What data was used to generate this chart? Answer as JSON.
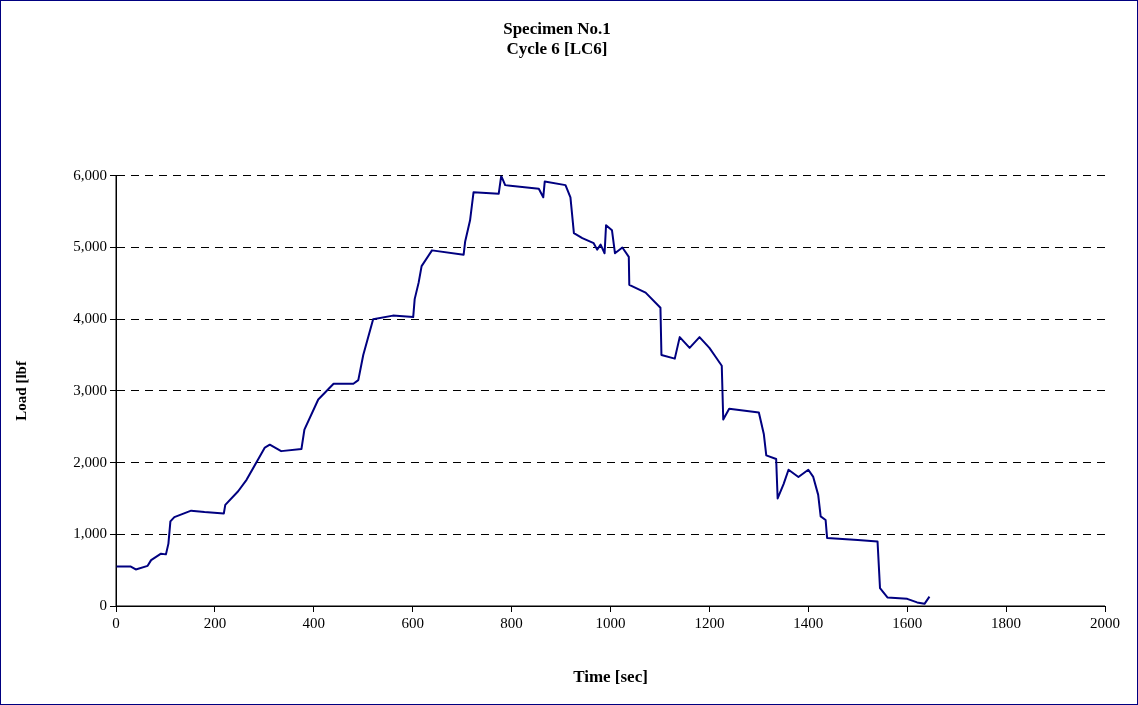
{
  "chart_data": {
    "type": "line",
    "title": "Specimen No.1",
    "subtitle": "Cycle 6 [LC6]",
    "xlabel": "Time [sec]",
    "ylabel": "Load [lbf",
    "grid": "y",
    "legend": false,
    "marker": "none",
    "line_style": "solid",
    "xlim": [
      0,
      2000
    ],
    "xticks": [
      0,
      200,
      400,
      600,
      800,
      1000,
      1200,
      1400,
      1600,
      1800,
      2000
    ],
    "ylim": [
      0,
      6000
    ],
    "yticks": [
      0,
      {
        "value": 1000,
        "label": "1,000"
      },
      {
        "value": 2000,
        "label": "2,000"
      },
      {
        "value": 3000,
        "label": "3,000"
      },
      {
        "value": 4000,
        "label": "4,000"
      },
      {
        "value": 5000,
        "label": "5,000"
      },
      {
        "value": 6000,
        "label": "6,000"
      }
    ],
    "series": [
      {
        "color": "#000080",
        "x": [
          0,
          30,
          40,
          64,
          71,
          91,
          101,
          106,
          110,
          118,
          152,
          179,
          218,
          221,
          247,
          264,
          287,
          301,
          311,
          334,
          375,
          381,
          409,
          440,
          480,
          490,
          500,
          520,
          560,
          601,
          604,
          612,
          618,
          639,
          703,
          706,
          716,
          723,
          774,
          779,
          787,
          855,
          864,
          867,
          909,
          919,
          926,
          943,
          966,
          973,
          980,
          988,
          991,
          1003,
          1009,
          1024,
          1037,
          1038,
          1071,
          1101,
          1103,
          1130,
          1140,
          1160,
          1180,
          1200,
          1210,
          1225,
          1228,
          1240,
          1300,
          1310,
          1315,
          1335,
          1338,
          1350,
          1360,
          1380,
          1400,
          1410,
          1420,
          1425,
          1435,
          1438,
          1500,
          1540,
          1545,
          1560,
          1600,
          1620,
          1635,
          1645
        ],
        "values": [
          550,
          550,
          510,
          560,
          640,
          730,
          720,
          870,
          1180,
          1240,
          1330,
          1310,
          1290,
          1410,
          1600,
          1760,
          2040,
          2210,
          2250,
          2160,
          2190,
          2460,
          2880,
          3100,
          3100,
          3150,
          3500,
          4000,
          4050,
          4030,
          4280,
          4510,
          4740,
          4960,
          4900,
          5080,
          5380,
          5770,
          5750,
          6000,
          5870,
          5820,
          5700,
          5920,
          5870,
          5700,
          5200,
          5130,
          5060,
          4970,
          5040,
          4920,
          5310,
          5240,
          4920,
          5000,
          4870,
          4480,
          4370,
          4160,
          3500,
          3450,
          3750,
          3600,
          3750,
          3600,
          3500,
          3350,
          2600,
          2750,
          2700,
          2400,
          2100,
          2050,
          1500,
          1700,
          1900,
          1800,
          1900,
          1800,
          1550,
          1250,
          1200,
          950,
          920,
          900,
          250,
          120,
          100,
          50,
          30,
          130
        ]
      }
    ]
  }
}
